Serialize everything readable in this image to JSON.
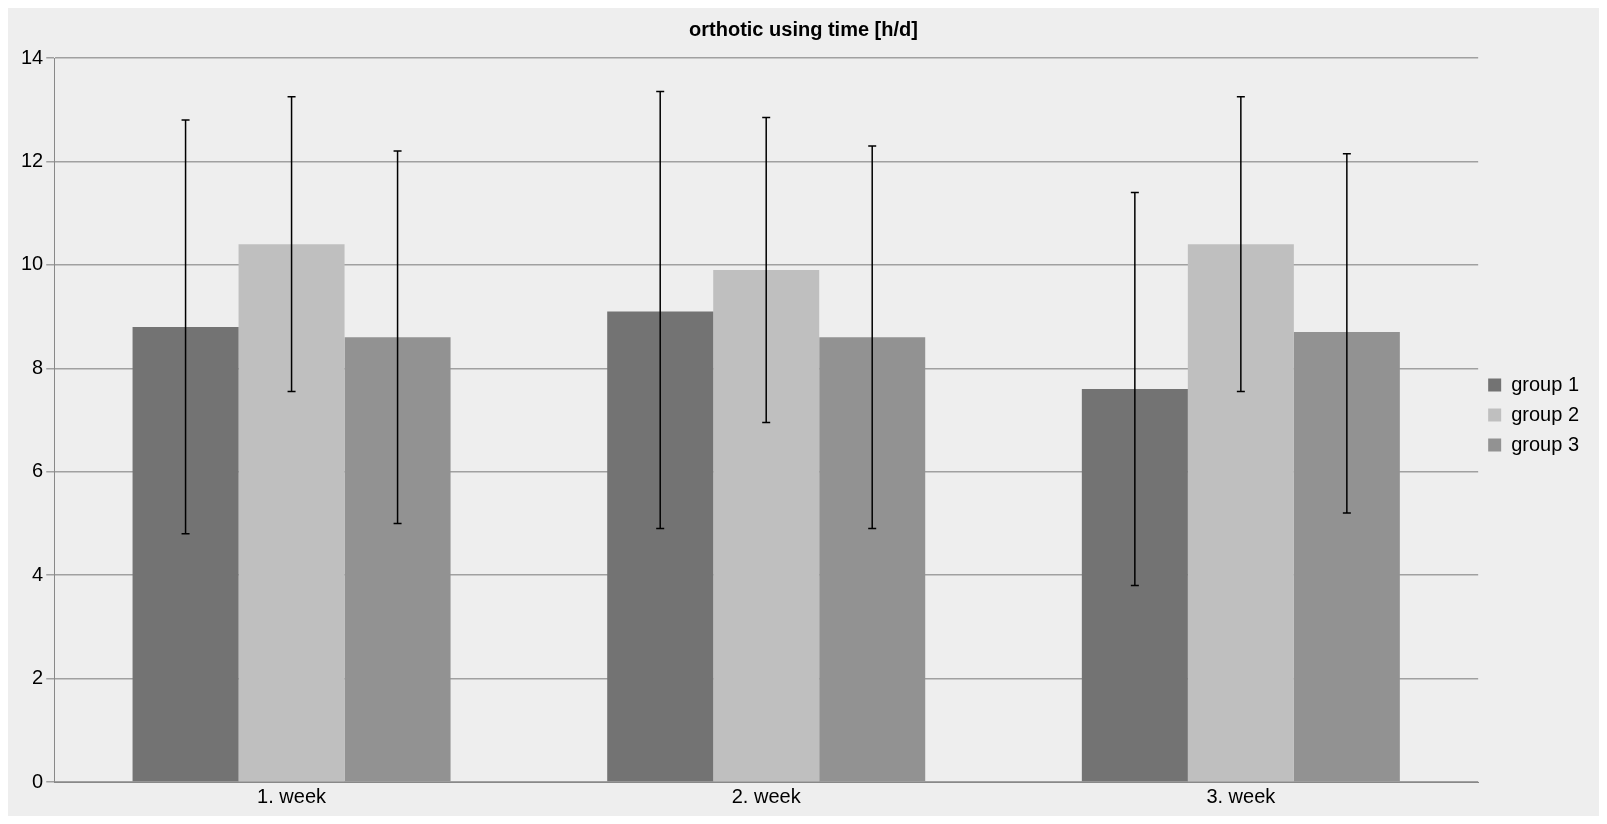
{
  "chart_data": {
    "type": "bar",
    "title": "orthotic using time [h/d]",
    "categories": [
      "1. week",
      "2. week",
      "3. week"
    ],
    "series": [
      {
        "name": "group 1",
        "color": "#737373",
        "values": [
          8.8,
          9.1,
          7.6
        ],
        "errors": [
          [
            4.8,
            12.8
          ],
          [
            4.9,
            13.35
          ],
          [
            3.8,
            11.4
          ]
        ]
      },
      {
        "name": "group 2",
        "color": "#bfbfbf",
        "values": [
          10.4,
          9.9,
          10.4
        ],
        "errors": [
          [
            7.55,
            13.25
          ],
          [
            6.95,
            12.85
          ],
          [
            7.55,
            13.25
          ]
        ]
      },
      {
        "name": "group 3",
        "color": "#929292",
        "values": [
          8.6,
          8.6,
          8.7
        ],
        "errors": [
          [
            5.0,
            12.2
          ],
          [
            4.9,
            12.3
          ],
          [
            5.2,
            12.15
          ]
        ]
      }
    ],
    "ylim": [
      0,
      14
    ],
    "yticks": [
      0,
      2,
      4,
      6,
      8,
      10,
      12,
      14
    ],
    "grid": "y",
    "legend": "right"
  }
}
